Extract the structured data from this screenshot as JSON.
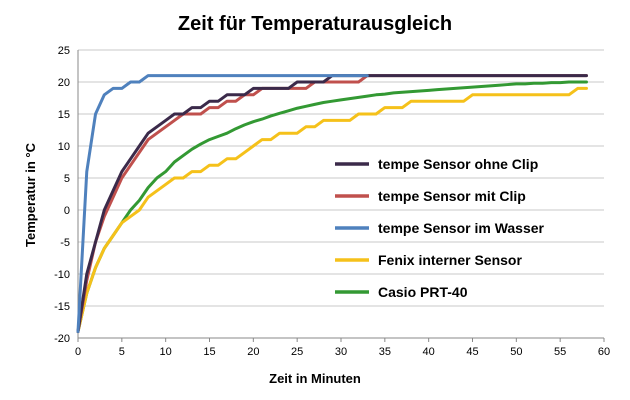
{
  "chart_data": {
    "type": "line",
    "title": "Zeit für Temperaturausgleich",
    "xlabel": "Zeit in Minuten",
    "ylabel": "Temperatur in °C",
    "xlim": [
      0,
      60
    ],
    "ylim": [
      -20,
      25
    ],
    "xticks": [
      0,
      5,
      10,
      15,
      20,
      25,
      30,
      35,
      40,
      45,
      50,
      55,
      60
    ],
    "yticks": [
      -20,
      -15,
      -10,
      -5,
      0,
      5,
      10,
      15,
      20,
      25
    ],
    "grid": "horizontal",
    "legend_position": "right",
    "series": [
      {
        "name": "tempe Sensor ohne Clip",
        "color": "#3b2a4a",
        "points": [
          [
            0,
            -19
          ],
          [
            1,
            -10
          ],
          [
            2,
            -5
          ],
          [
            3,
            0
          ],
          [
            4,
            3
          ],
          [
            5,
            6
          ],
          [
            6,
            8
          ],
          [
            7,
            10
          ],
          [
            8,
            12
          ],
          [
            9,
            13
          ],
          [
            10,
            14
          ],
          [
            11,
            15
          ],
          [
            12,
            15
          ],
          [
            13,
            16
          ],
          [
            14,
            16
          ],
          [
            15,
            17
          ],
          [
            16,
            17
          ],
          [
            17,
            18
          ],
          [
            18,
            18
          ],
          [
            19,
            18
          ],
          [
            20,
            19
          ],
          [
            21,
            19
          ],
          [
            22,
            19
          ],
          [
            23,
            19
          ],
          [
            24,
            19
          ],
          [
            25,
            20
          ],
          [
            26,
            20
          ],
          [
            27,
            20
          ],
          [
            28,
            20
          ],
          [
            29,
            21
          ],
          [
            30,
            21
          ],
          [
            35,
            21
          ],
          [
            40,
            21
          ],
          [
            45,
            21
          ],
          [
            50,
            21
          ],
          [
            55,
            21
          ],
          [
            58,
            21
          ]
        ]
      },
      {
        "name": "tempe Sensor mit Clip",
        "color": "#c0504d",
        "points": [
          [
            0,
            -19
          ],
          [
            1,
            -11
          ],
          [
            2,
            -5
          ],
          [
            3,
            -1
          ],
          [
            4,
            2
          ],
          [
            5,
            5
          ],
          [
            6,
            7
          ],
          [
            7,
            9
          ],
          [
            8,
            11
          ],
          [
            9,
            12
          ],
          [
            10,
            13
          ],
          [
            11,
            14
          ],
          [
            12,
            15
          ],
          [
            13,
            15
          ],
          [
            14,
            15
          ],
          [
            15,
            16
          ],
          [
            16,
            16
          ],
          [
            17,
            17
          ],
          [
            18,
            17
          ],
          [
            19,
            18
          ],
          [
            20,
            18
          ],
          [
            21,
            19
          ],
          [
            22,
            19
          ],
          [
            23,
            19
          ],
          [
            24,
            19
          ],
          [
            25,
            19
          ],
          [
            26,
            19
          ],
          [
            27,
            20
          ],
          [
            28,
            20
          ],
          [
            29,
            20
          ],
          [
            30,
            20
          ],
          [
            31,
            20
          ],
          [
            32,
            20
          ],
          [
            33,
            21
          ],
          [
            35,
            21
          ],
          [
            40,
            21
          ],
          [
            45,
            21
          ],
          [
            50,
            21
          ],
          [
            55,
            21
          ],
          [
            58,
            21
          ]
        ]
      },
      {
        "name": "tempe Sensor im Wasser",
        "color": "#4f81bd",
        "points": [
          [
            0,
            -19
          ],
          [
            1,
            6
          ],
          [
            2,
            15
          ],
          [
            3,
            18
          ],
          [
            4,
            19
          ],
          [
            5,
            19
          ],
          [
            6,
            20
          ],
          [
            7,
            20
          ],
          [
            8,
            21
          ],
          [
            9,
            21
          ],
          [
            10,
            21
          ],
          [
            15,
            21
          ],
          [
            20,
            21
          ],
          [
            25,
            21
          ],
          [
            30,
            21
          ],
          [
            33,
            21
          ]
        ]
      },
      {
        "name": "Fenix interner Sensor",
        "color": "#f5c11a",
        "points": [
          [
            0,
            -19
          ],
          [
            1,
            -13
          ],
          [
            2,
            -9
          ],
          [
            3,
            -6
          ],
          [
            4,
            -4
          ],
          [
            5,
            -2
          ],
          [
            6,
            -1
          ],
          [
            7,
            0
          ],
          [
            8,
            2
          ],
          [
            9,
            3
          ],
          [
            10,
            4
          ],
          [
            11,
            5
          ],
          [
            12,
            5
          ],
          [
            13,
            6
          ],
          [
            14,
            6
          ],
          [
            15,
            7
          ],
          [
            16,
            7
          ],
          [
            17,
            8
          ],
          [
            18,
            8
          ],
          [
            19,
            9
          ],
          [
            20,
            10
          ],
          [
            21,
            11
          ],
          [
            22,
            11
          ],
          [
            23,
            12
          ],
          [
            24,
            12
          ],
          [
            25,
            12
          ],
          [
            26,
            13
          ],
          [
            27,
            13
          ],
          [
            28,
            14
          ],
          [
            29,
            14
          ],
          [
            30,
            14
          ],
          [
            31,
            14
          ],
          [
            32,
            15
          ],
          [
            33,
            15
          ],
          [
            34,
            15
          ],
          [
            35,
            16
          ],
          [
            36,
            16
          ],
          [
            37,
            16
          ],
          [
            38,
            17
          ],
          [
            39,
            17
          ],
          [
            40,
            17
          ],
          [
            41,
            17
          ],
          [
            42,
            17
          ],
          [
            43,
            17
          ],
          [
            44,
            17
          ],
          [
            45,
            18
          ],
          [
            46,
            18
          ],
          [
            47,
            18
          ],
          [
            48,
            18
          ],
          [
            49,
            18
          ],
          [
            50,
            18
          ],
          [
            51,
            18
          ],
          [
            52,
            18
          ],
          [
            53,
            18
          ],
          [
            54,
            18
          ],
          [
            55,
            18
          ],
          [
            56,
            18
          ],
          [
            57,
            19
          ],
          [
            58,
            19
          ]
        ]
      },
      {
        "name": "Casio PRT-40",
        "color": "#339933",
        "points": [
          [
            0,
            -19
          ],
          [
            1,
            -13
          ],
          [
            2,
            -9
          ],
          [
            3,
            -6
          ],
          [
            4,
            -4
          ],
          [
            5,
            -2
          ],
          [
            6,
            0
          ],
          [
            7,
            1.5
          ],
          [
            8,
            3.5
          ],
          [
            9,
            5
          ],
          [
            10,
            6
          ],
          [
            11,
            7.5
          ],
          [
            12,
            8.5
          ],
          [
            13,
            9.5
          ],
          [
            14,
            10.3
          ],
          [
            15,
            11
          ],
          [
            16,
            11.5
          ],
          [
            17,
            12
          ],
          [
            18,
            12.7
          ],
          [
            19,
            13.3
          ],
          [
            20,
            13.8
          ],
          [
            21,
            14.2
          ],
          [
            22,
            14.7
          ],
          [
            23,
            15.1
          ],
          [
            24,
            15.5
          ],
          [
            25,
            15.9
          ],
          [
            26,
            16.2
          ],
          [
            27,
            16.5
          ],
          [
            28,
            16.8
          ],
          [
            29,
            17
          ],
          [
            30,
            17.2
          ],
          [
            31,
            17.4
          ],
          [
            32,
            17.6
          ],
          [
            33,
            17.8
          ],
          [
            34,
            18
          ],
          [
            35,
            18.1
          ],
          [
            36,
            18.3
          ],
          [
            37,
            18.4
          ],
          [
            38,
            18.5
          ],
          [
            39,
            18.6
          ],
          [
            40,
            18.7
          ],
          [
            41,
            18.8
          ],
          [
            42,
            18.9
          ],
          [
            43,
            19
          ],
          [
            44,
            19.1
          ],
          [
            45,
            19.2
          ],
          [
            46,
            19.3
          ],
          [
            47,
            19.4
          ],
          [
            48,
            19.5
          ],
          [
            49,
            19.6
          ],
          [
            50,
            19.7
          ],
          [
            51,
            19.7
          ],
          [
            52,
            19.8
          ],
          [
            53,
            19.8
          ],
          [
            54,
            19.9
          ],
          [
            55,
            19.9
          ],
          [
            56,
            20
          ],
          [
            57,
            20
          ],
          [
            58,
            20
          ]
        ]
      }
    ]
  }
}
